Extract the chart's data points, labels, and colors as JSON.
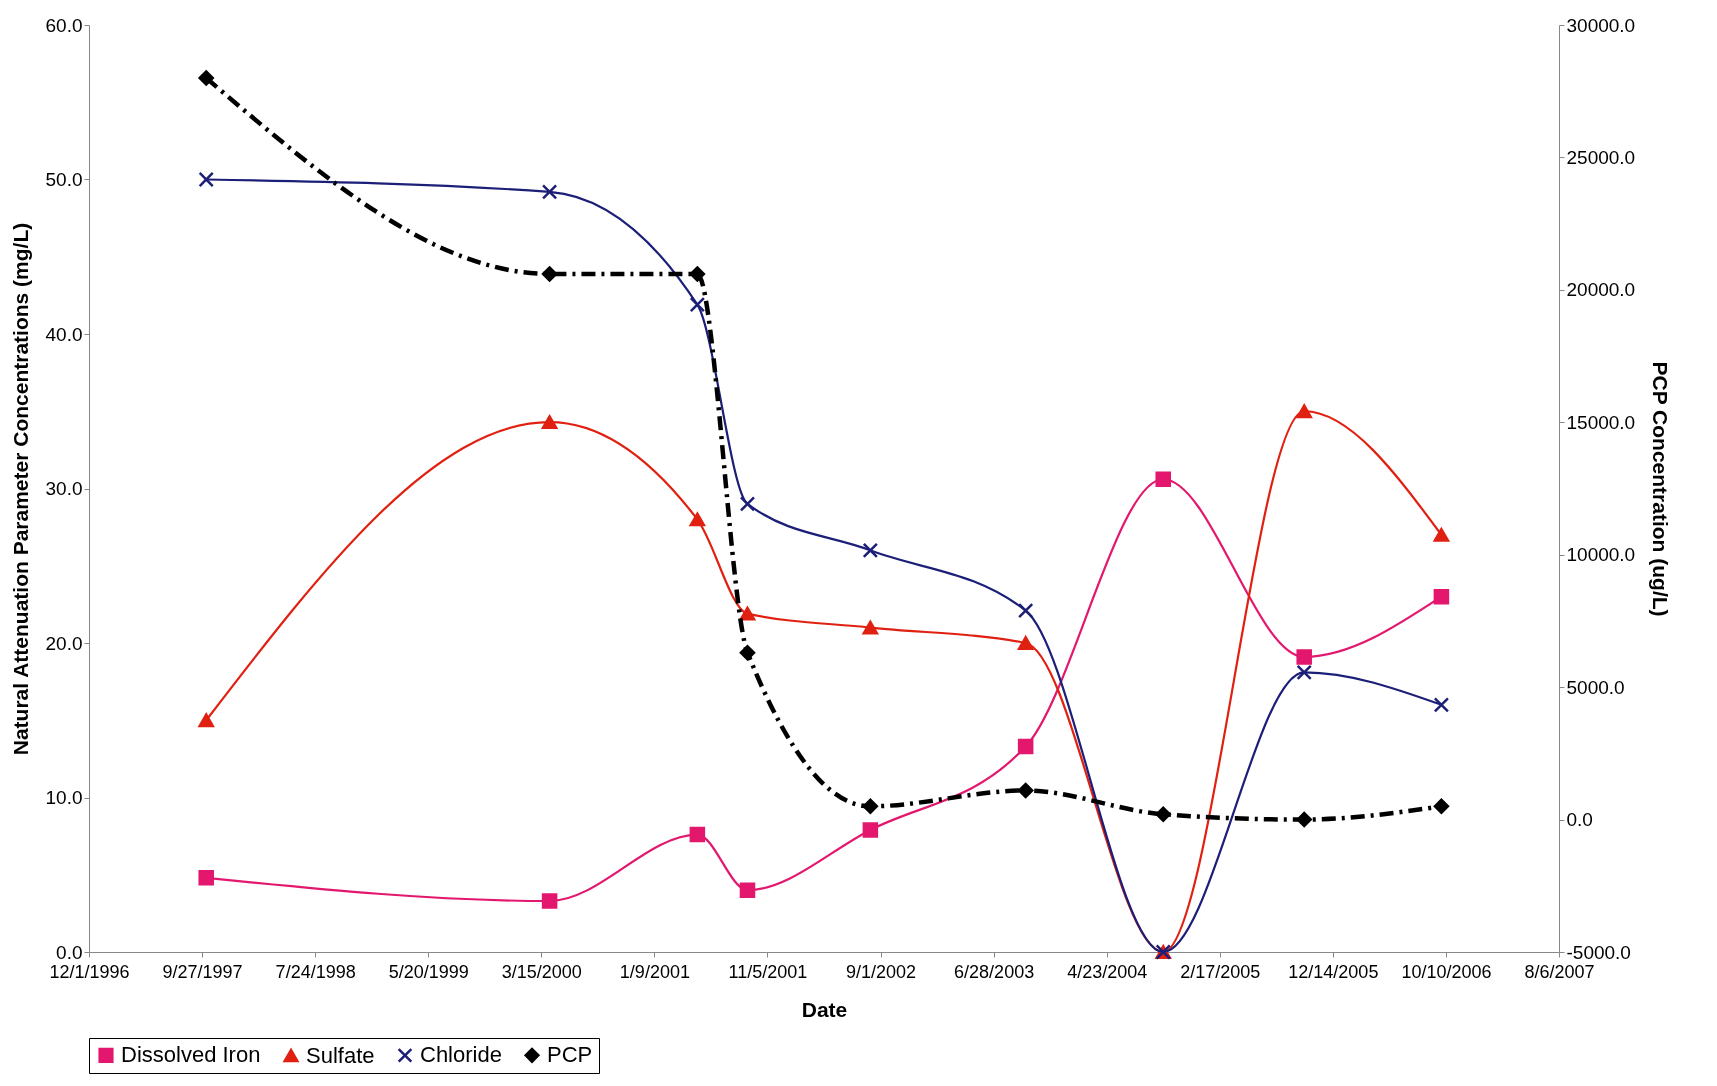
{
  "chart_data": {
    "type": "line",
    "xlabel": "Date",
    "ylabel": "Natural Attenuation Parameter Concentrations (mg/L)",
    "y2label": "PCP Concentration (ug/L)",
    "x": [
      "1997-10-08",
      "2000-04-06",
      "2001-05-03",
      "2001-09-13",
      "2002-08-05",
      "2003-09-21",
      "2004-09-20",
      "2005-09-29",
      "2006-09-28"
    ],
    "series": [
      {
        "name": "Dissolved Iron",
        "color": "#e3176e",
        "marker": "square",
        "line_style": "solid",
        "values": [
          4.8,
          3.3,
          7.6,
          4.0,
          7.9,
          13.3,
          30.6,
          19.1,
          23.0
        ]
      },
      {
        "name": "Sulfate",
        "color": "#e02010",
        "marker": "triangle",
        "line_style": "solid",
        "values": [
          15.0,
          34.3,
          28.0,
          21.9,
          21.0,
          20.0,
          0.0,
          35.0,
          27.0
        ]
      },
      {
        "name": "Chloride",
        "color": "#1c1f78",
        "marker": "cross",
        "line_style": "solid",
        "values": [
          50.0,
          49.2,
          41.9,
          29.0,
          26.0,
          22.1,
          0.0,
          18.1,
          16.0
        ]
      },
      {
        "name": "PCP",
        "color": "#000000",
        "marker": "diamond",
        "line_style": "dashed",
        "axis": "y2",
        "values": [
          28000,
          20600,
          20600,
          6300,
          500,
          1100,
          200,
          0,
          500
        ]
      }
    ],
    "xlim": [
      "1996-12-01",
      "2007-08-06"
    ],
    "xticks": [
      {
        "value": "1996-12-01",
        "label": "12/1/1996"
      },
      {
        "value": "1997-09-27",
        "label": "9/27/1997"
      },
      {
        "value": "1998-07-24",
        "label": "7/24/1998"
      },
      {
        "value": "1999-05-20",
        "label": "5/20/1999"
      },
      {
        "value": "2000-03-15",
        "label": "3/15/2000"
      },
      {
        "value": "2001-01-09",
        "label": "1/9/2001"
      },
      {
        "value": "2001-11-05",
        "label": "11/5/2001"
      },
      {
        "value": "2002-09-01",
        "label": "9/1/2002"
      },
      {
        "value": "2003-06-28",
        "label": "6/28/2003"
      },
      {
        "value": "2004-04-23",
        "label": "4/23/2004"
      },
      {
        "value": "2005-02-17",
        "label": "2/17/2005"
      },
      {
        "value": "2005-12-14",
        "label": "12/14/2005"
      },
      {
        "value": "2006-10-10",
        "label": "10/10/2006"
      },
      {
        "value": "2007-08-06",
        "label": "8/6/2007"
      }
    ],
    "ylim": [
      0,
      60
    ],
    "yticks": [
      {
        "value": 0,
        "label": "0.0"
      },
      {
        "value": 10,
        "label": "10.0"
      },
      {
        "value": 20,
        "label": "20.0"
      },
      {
        "value": 30,
        "label": "30.0"
      },
      {
        "value": 40,
        "label": "40.0"
      },
      {
        "value": 50,
        "label": "50.0"
      },
      {
        "value": 60,
        "label": "60.0"
      }
    ],
    "y2lim": [
      -5000,
      30000
    ],
    "y2ticks": [
      {
        "value": -5000,
        "label": "-5000.0"
      },
      {
        "value": 0,
        "label": "0.0"
      },
      {
        "value": 5000,
        "label": "5000.0"
      },
      {
        "value": 10000,
        "label": "10000.0"
      },
      {
        "value": 15000,
        "label": "15000.0"
      },
      {
        "value": 20000,
        "label": "20000.0"
      },
      {
        "value": 25000,
        "label": "25000.0"
      },
      {
        "value": 30000,
        "label": "30000.0"
      }
    ],
    "grid": false,
    "legend": "bottom"
  }
}
